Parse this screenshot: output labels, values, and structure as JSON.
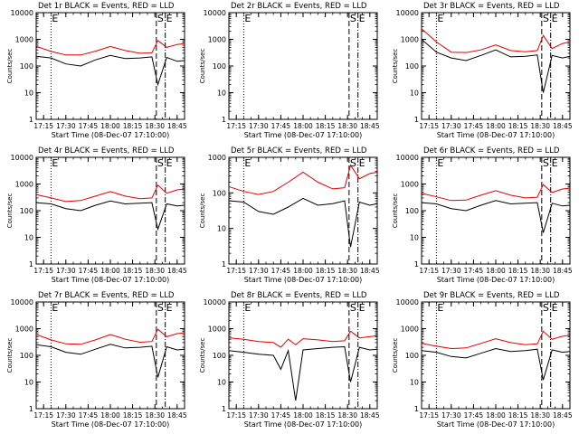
{
  "figure": {
    "title_template": "Det {id} BLACK = Events, RED = LLD",
    "xlabel": "Start Time (08-Dec-07 17:10:00)",
    "ylabel": "Counts/sec",
    "x_ticks": [
      "17:15",
      "17:30",
      "17:45",
      "18:00",
      "18:15",
      "18:30",
      "18:45"
    ],
    "y_ticks": [
      "1",
      "10",
      "100",
      "1000",
      "10000"
    ],
    "marker_labels": [
      "E",
      "S",
      "E"
    ],
    "colors": {
      "events": "#000000",
      "lld": "#e00000",
      "background": "#ffffff"
    }
  },
  "chart_data": [
    {
      "type": "line",
      "title": "Det 1r BLACK = Events, RED = LLD",
      "detector": "1r",
      "xlabel": "Start Time (08-Dec-07 17:10:00)",
      "ylabel": "Counts/sec",
      "y_scale": "log",
      "ylim": [
        1,
        10000
      ],
      "xlim": [
        "17:10",
        "18:50"
      ],
      "x_ticks": [
        "17:15",
        "17:30",
        "17:45",
        "18:00",
        "18:15",
        "18:30",
        "18:45"
      ],
      "y_ticks": [
        1,
        10,
        100,
        1000,
        10000
      ],
      "markers": [
        {
          "label": "E",
          "x": "17:20",
          "style": "dotted"
        },
        {
          "label": "S",
          "x": "18:31",
          "style": "dashed"
        },
        {
          "label": "E",
          "x": "18:37",
          "style": "dash-dot"
        }
      ],
      "series": [
        {
          "name": "BLACK = Events",
          "color": "#000000",
          "x": [
            "17:10",
            "17:20",
            "17:30",
            "17:40",
            "17:50",
            "18:00",
            "18:10",
            "18:20",
            "18:28",
            "18:32",
            "18:38",
            "18:45",
            "18:50"
          ],
          "y": [
            230,
            200,
            120,
            100,
            170,
            250,
            190,
            200,
            220,
            20,
            210,
            150,
            160
          ]
        },
        {
          "name": "RED = LLD",
          "color": "#e00000",
          "x": [
            "17:10",
            "17:20",
            "17:30",
            "17:40",
            "17:50",
            "18:00",
            "18:10",
            "18:20",
            "18:28",
            "18:32",
            "18:38",
            "18:45",
            "18:50"
          ],
          "y": [
            550,
            350,
            260,
            260,
            360,
            540,
            380,
            300,
            310,
            900,
            500,
            640,
            700
          ]
        }
      ]
    },
    {
      "type": "line",
      "title": "Det 2r BLACK = Events, RED = LLD",
      "detector": "2r",
      "xlabel": "Start Time (08-Dec-07 17:10:00)",
      "ylabel": "Counts/sec",
      "y_scale": "log",
      "ylim": [
        1,
        10000
      ],
      "xlim": [
        "17:10",
        "18:50"
      ],
      "x_ticks": [
        "17:15",
        "17:30",
        "17:45",
        "18:00",
        "18:15",
        "18:30",
        "18:45"
      ],
      "y_ticks": [
        1,
        10,
        100,
        1000,
        10000
      ],
      "markers": [
        {
          "label": "E",
          "x": "17:20",
          "style": "dotted"
        },
        {
          "label": "S",
          "x": "18:31",
          "style": "dashed"
        },
        {
          "label": "E",
          "x": "18:37",
          "style": "dash-dot"
        }
      ],
      "series": []
    },
    {
      "type": "line",
      "title": "Det 3r BLACK = Events, RED = LLD",
      "detector": "3r",
      "xlabel": "Start Time (08-Dec-07 17:10:00)",
      "ylabel": "Counts/sec",
      "y_scale": "log",
      "ylim": [
        1,
        10000
      ],
      "xlim": [
        "17:10",
        "18:50"
      ],
      "x_ticks": [
        "17:15",
        "17:30",
        "17:45",
        "18:00",
        "18:15",
        "18:30",
        "18:45"
      ],
      "y_ticks": [
        1,
        10,
        100,
        1000,
        10000
      ],
      "markers": [
        {
          "label": "E",
          "x": "17:20",
          "style": "dotted"
        },
        {
          "label": "S",
          "x": "18:31",
          "style": "dashed"
        },
        {
          "label": "E",
          "x": "18:37",
          "style": "dash-dot"
        }
      ],
      "series": [
        {
          "name": "BLACK = Events",
          "color": "#000000",
          "x": [
            "17:10",
            "17:20",
            "17:30",
            "17:40",
            "17:50",
            "18:00",
            "18:10",
            "18:20",
            "18:28",
            "18:32",
            "18:38",
            "18:45",
            "18:50"
          ],
          "y": [
            1000,
            330,
            200,
            160,
            250,
            400,
            220,
            230,
            260,
            10,
            250,
            200,
            230
          ]
        },
        {
          "name": "RED = LLD",
          "color": "#e00000",
          "x": [
            "17:10",
            "17:20",
            "17:30",
            "17:40",
            "17:50",
            "18:00",
            "18:10",
            "18:20",
            "18:28",
            "18:32",
            "18:38",
            "18:45",
            "18:50"
          ],
          "y": [
            2500,
            800,
            330,
            320,
            400,
            620,
            380,
            340,
            380,
            1400,
            450,
            700,
            800
          ]
        }
      ]
    },
    {
      "type": "line",
      "title": "Det 4r BLACK = Events, RED = LLD",
      "detector": "4r",
      "xlabel": "Start Time (08-Dec-07 17:10:00)",
      "ylabel": "Counts/sec",
      "y_scale": "log",
      "ylim": [
        1,
        10000
      ],
      "xlim": [
        "17:10",
        "18:50"
      ],
      "x_ticks": [
        "17:15",
        "17:30",
        "17:45",
        "18:00",
        "18:15",
        "18:30",
        "18:45"
      ],
      "y_ticks": [
        1,
        10,
        100,
        1000,
        10000
      ],
      "markers": [
        {
          "label": "E",
          "x": "17:20",
          "style": "dotted"
        },
        {
          "label": "S",
          "x": "18:31",
          "style": "dashed"
        },
        {
          "label": "E",
          "x": "18:37",
          "style": "dash-dot"
        }
      ],
      "series": [
        {
          "name": "BLACK = Events",
          "color": "#000000",
          "x": [
            "17:10",
            "17:20",
            "17:30",
            "17:40",
            "17:50",
            "18:00",
            "18:10",
            "18:20",
            "18:28",
            "18:32",
            "18:38",
            "18:45",
            "18:50"
          ],
          "y": [
            200,
            180,
            120,
            100,
            160,
            230,
            180,
            190,
            200,
            20,
            180,
            150,
            160
          ]
        },
        {
          "name": "RED = LLD",
          "color": "#e00000",
          "x": [
            "17:10",
            "17:20",
            "17:30",
            "17:40",
            "17:50",
            "18:00",
            "18:10",
            "18:20",
            "18:28",
            "18:32",
            "18:38",
            "18:45",
            "18:50"
          ],
          "y": [
            400,
            300,
            220,
            240,
            350,
            520,
            350,
            280,
            300,
            900,
            450,
            600,
            650
          ]
        }
      ]
    },
    {
      "type": "line",
      "title": "Det 5r BLACK = Events, RED = LLD",
      "detector": "5r",
      "xlabel": "Start Time (08-Dec-07 17:10:00)",
      "ylabel": "Counts/sec",
      "y_scale": "log",
      "ylim": [
        1,
        1000
      ],
      "xlim": [
        "17:10",
        "18:50"
      ],
      "x_ticks": [
        "17:15",
        "17:30",
        "17:45",
        "18:00",
        "18:15",
        "18:30",
        "18:45"
      ],
      "y_ticks": [
        1,
        10,
        100,
        1000
      ],
      "markers": [
        {
          "label": "E",
          "x": "17:20",
          "style": "dotted"
        },
        {
          "label": "S",
          "x": "18:31",
          "style": "dashed"
        },
        {
          "label": "E",
          "x": "18:37",
          "style": "dash-dot"
        }
      ],
      "series": [
        {
          "name": "BLACK = Events",
          "color": "#000000",
          "x": [
            "17:10",
            "17:20",
            "17:30",
            "17:40",
            "17:50",
            "18:00",
            "18:10",
            "18:20",
            "18:28",
            "18:32",
            "18:38",
            "18:45",
            "18:50"
          ],
          "y": [
            60,
            55,
            30,
            25,
            40,
            70,
            45,
            50,
            60,
            3,
            55,
            45,
            50
          ]
        },
        {
          "name": "RED = LLD",
          "color": "#e00000",
          "x": [
            "17:10",
            "17:20",
            "17:30",
            "17:40",
            "17:50",
            "18:00",
            "18:10",
            "18:20",
            "18:28",
            "18:32",
            "18:38",
            "18:45",
            "18:50"
          ],
          "y": [
            150,
            110,
            90,
            110,
            200,
            380,
            200,
            130,
            140,
            600,
            250,
            350,
            380
          ]
        }
      ]
    },
    {
      "type": "line",
      "title": "Det 6r BLACK = Events, RED = LLD",
      "detector": "6r",
      "xlabel": "Start Time (08-Dec-07 17:10:00)",
      "ylabel": "Counts/sec",
      "y_scale": "log",
      "ylim": [
        1,
        10000
      ],
      "xlim": [
        "17:10",
        "18:50"
      ],
      "x_ticks": [
        "17:15",
        "17:30",
        "17:45",
        "18:00",
        "18:15",
        "18:30",
        "18:45"
      ],
      "y_ticks": [
        1,
        10,
        100,
        1000,
        10000
      ],
      "markers": [
        {
          "label": "E",
          "x": "17:20",
          "style": "dotted"
        },
        {
          "label": "S",
          "x": "18:31",
          "style": "dashed"
        },
        {
          "label": "E",
          "x": "18:37",
          "style": "dash-dot"
        }
      ],
      "series": [
        {
          "name": "BLACK = Events",
          "color": "#000000",
          "x": [
            "17:10",
            "17:20",
            "17:30",
            "17:40",
            "17:50",
            "18:00",
            "18:10",
            "18:20",
            "18:28",
            "18:32",
            "18:38",
            "18:45",
            "18:50"
          ],
          "y": [
            200,
            180,
            120,
            100,
            160,
            240,
            180,
            190,
            200,
            15,
            190,
            150,
            160
          ]
        },
        {
          "name": "RED = LLD",
          "color": "#e00000",
          "x": [
            "17:10",
            "17:20",
            "17:30",
            "17:40",
            "17:50",
            "18:00",
            "18:10",
            "18:20",
            "18:28",
            "18:32",
            "18:38",
            "18:45",
            "18:50"
          ],
          "y": [
            450,
            330,
            240,
            250,
            380,
            560,
            380,
            300,
            320,
            950,
            480,
            650,
            700
          ]
        }
      ]
    },
    {
      "type": "line",
      "title": "Det 7r BLACK = Events, RED = LLD",
      "detector": "7r",
      "xlabel": "Start Time (08-Dec-07 17:10:00)",
      "ylabel": "Counts/sec",
      "y_scale": "log",
      "ylim": [
        1,
        10000
      ],
      "xlim": [
        "17:10",
        "18:50"
      ],
      "x_ticks": [
        "17:15",
        "17:30",
        "17:45",
        "18:00",
        "18:15",
        "18:30",
        "18:45"
      ],
      "y_ticks": [
        1,
        10,
        100,
        1000,
        10000
      ],
      "markers": [
        {
          "label": "E",
          "x": "17:20",
          "style": "dotted"
        },
        {
          "label": "S",
          "x": "18:31",
          "style": "dashed"
        },
        {
          "label": "E",
          "x": "18:37",
          "style": "dash-dot"
        }
      ],
      "series": [
        {
          "name": "BLACK = Events",
          "color": "#000000",
          "x": [
            "17:10",
            "17:20",
            "17:30",
            "17:40",
            "17:50",
            "18:00",
            "18:10",
            "18:20",
            "18:28",
            "18:32",
            "18:38",
            "18:45",
            "18:50"
          ],
          "y": [
            250,
            210,
            130,
            110,
            170,
            260,
            190,
            200,
            220,
            15,
            210,
            160,
            170
          ]
        },
        {
          "name": "RED = LLD",
          "color": "#e00000",
          "x": [
            "17:10",
            "17:20",
            "17:30",
            "17:40",
            "17:50",
            "18:00",
            "18:10",
            "18:20",
            "18:28",
            "18:32",
            "18:38",
            "18:45",
            "18:50"
          ],
          "y": [
            600,
            380,
            270,
            260,
            380,
            600,
            400,
            310,
            330,
            950,
            500,
            650,
            700
          ]
        }
      ]
    },
    {
      "type": "line",
      "title": "Det 8r BLACK = Events, RED = LLD",
      "detector": "8r",
      "xlabel": "Start Time (08-Dec-07 17:10:00)",
      "ylabel": "Counts/sec",
      "y_scale": "log",
      "ylim": [
        1,
        10000
      ],
      "xlim": [
        "17:10",
        "18:50"
      ],
      "x_ticks": [
        "17:15",
        "17:30",
        "17:45",
        "18:00",
        "18:15",
        "18:30",
        "18:45"
      ],
      "y_ticks": [
        1,
        10,
        100,
        1000,
        10000
      ],
      "markers": [
        {
          "label": "E",
          "x": "17:20",
          "style": "dotted"
        },
        {
          "label": "S",
          "x": "18:31",
          "style": "dashed"
        },
        {
          "label": "E",
          "x": "18:37",
          "style": "dash-dot"
        }
      ],
      "series": [
        {
          "name": "BLACK = Events",
          "color": "#000000",
          "x": [
            "17:10",
            "17:20",
            "17:30",
            "17:40",
            "17:45",
            "17:50",
            "17:55",
            "18:00",
            "18:10",
            "18:20",
            "18:28",
            "18:32",
            "18:38",
            "18:45",
            "18:50"
          ],
          "y": [
            150,
            130,
            110,
            100,
            30,
            150,
            2,
            160,
            180,
            200,
            210,
            10,
            200,
            160,
            170
          ]
        },
        {
          "name": "RED = LLD",
          "color": "#e00000",
          "x": [
            "17:10",
            "17:20",
            "17:30",
            "17:40",
            "17:45",
            "17:50",
            "17:55",
            "18:00",
            "18:10",
            "18:20",
            "18:28",
            "18:32",
            "18:38",
            "18:45",
            "18:50"
          ],
          "y": [
            450,
            400,
            330,
            300,
            200,
            400,
            250,
            420,
            380,
            330,
            350,
            800,
            450,
            500,
            550
          ]
        }
      ]
    },
    {
      "type": "line",
      "title": "Det 9r BLACK = Events, RED = LLD",
      "detector": "9r",
      "xlabel": "Start Time (08-Dec-07 17:10:00)",
      "ylabel": "Counts/sec",
      "y_scale": "log",
      "ylim": [
        1,
        10000
      ],
      "xlim": [
        "17:10",
        "18:50"
      ],
      "x_ticks": [
        "17:15",
        "17:30",
        "17:45",
        "18:00",
        "18:15",
        "18:30",
        "18:45"
      ],
      "y_ticks": [
        1,
        10,
        100,
        1000,
        10000
      ],
      "markers": [
        {
          "label": "E",
          "x": "17:20",
          "style": "dotted"
        },
        {
          "label": "S",
          "x": "18:31",
          "style": "dashed"
        },
        {
          "label": "E",
          "x": "18:37",
          "style": "dash-dot"
        }
      ],
      "series": [
        {
          "name": "BLACK = Events",
          "color": "#000000",
          "x": [
            "17:10",
            "17:20",
            "17:30",
            "17:40",
            "17:50",
            "18:00",
            "18:10",
            "18:20",
            "18:28",
            "18:32",
            "18:38",
            "18:45",
            "18:50"
          ],
          "y": [
            150,
            130,
            90,
            80,
            120,
            180,
            140,
            150,
            170,
            12,
            160,
            130,
            140
          ]
        },
        {
          "name": "RED = LLD",
          "color": "#e00000",
          "x": [
            "17:10",
            "17:20",
            "17:30",
            "17:40",
            "17:50",
            "18:00",
            "18:10",
            "18:20",
            "18:28",
            "18:32",
            "18:38",
            "18:45",
            "18:50"
          ],
          "y": [
            280,
            220,
            180,
            190,
            280,
            420,
            300,
            250,
            270,
            800,
            400,
            520,
            560
          ]
        }
      ]
    }
  ]
}
